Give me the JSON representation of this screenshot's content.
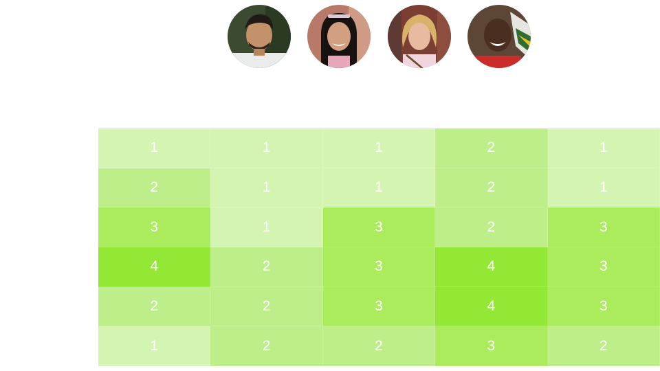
{
  "avatars": [
    {
      "name": "person-1",
      "icon": "avatar-photo"
    },
    {
      "name": "person-2",
      "icon": "avatar-photo"
    },
    {
      "name": "person-3",
      "icon": "avatar-photo"
    },
    {
      "name": "person-4",
      "icon": "avatar-photo"
    }
  ],
  "heatmap": {
    "colors": {
      "1": "#d4f5b1",
      "2": "#bdee89",
      "3": "#aaec5c",
      "4": "#92e834"
    },
    "rows": [
      [
        1,
        1,
        1,
        2,
        1
      ],
      [
        2,
        1,
        1,
        2,
        1
      ],
      [
        3,
        1,
        3,
        2,
        3
      ],
      [
        4,
        2,
        3,
        4,
        3
      ],
      [
        2,
        2,
        3,
        4,
        3
      ],
      [
        1,
        2,
        2,
        3,
        2
      ]
    ]
  }
}
